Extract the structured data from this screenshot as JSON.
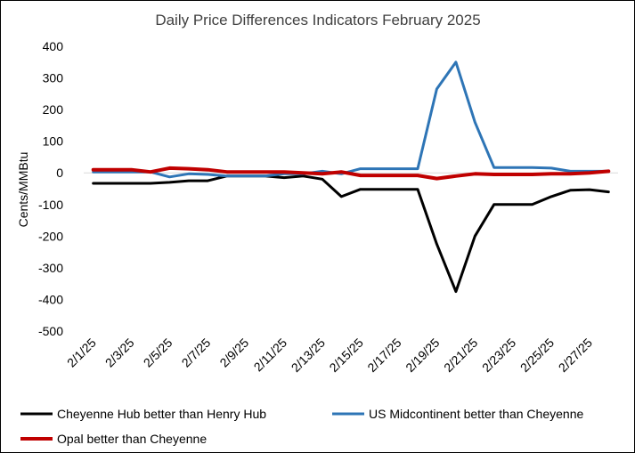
{
  "chart_data": {
    "type": "line",
    "title": "Daily Price Differences Indicators February 2025",
    "xlabel": "",
    "ylabel": "Cents/MMBtu",
    "ylim": [
      -500,
      400
    ],
    "yticks": [
      400,
      300,
      200,
      100,
      0,
      -100,
      -200,
      -300,
      -400,
      -500
    ],
    "ytick_labels": [
      "400",
      "300",
      "200",
      "100",
      "0",
      "-100",
      "-200",
      "-300",
      "-400",
      "-500"
    ],
    "categories": [
      "2/1/25",
      "2/2/25",
      "2/3/25",
      "2/4/25",
      "2/5/25",
      "2/6/25",
      "2/7/25",
      "2/8/25",
      "2/9/25",
      "2/10/25",
      "2/11/25",
      "2/12/25",
      "2/13/25",
      "2/14/25",
      "2/15/25",
      "2/16/25",
      "2/17/25",
      "2/18/25",
      "2/19/25",
      "2/20/25",
      "2/21/25",
      "2/22/25",
      "2/23/25",
      "2/24/25",
      "2/25/25",
      "2/26/25",
      "2/27/25",
      "2/28/25"
    ],
    "xtick_labels": [
      "2/1/25",
      "2/3/25",
      "2/5/25",
      "2/7/25",
      "2/9/25",
      "2/11/25",
      "2/13/25",
      "2/15/25",
      "2/17/25",
      "2/19/25",
      "2/21/25",
      "2/23/25",
      "2/25/25",
      "2/27/25"
    ],
    "grid": false,
    "legend_position": "bottom",
    "series": [
      {
        "name": "Cheyenne Hub better than Henry Hub",
        "color": "#000000",
        "values": [
          -33,
          -33,
          -33,
          -33,
          -30,
          -25,
          -25,
          -10,
          -10,
          -10,
          -15,
          -10,
          -20,
          -75,
          -52,
          -52,
          -52,
          -52,
          -225,
          -375,
          -200,
          -100,
          -100,
          -100,
          -75,
          -55,
          -53,
          -60
        ]
      },
      {
        "name": "US Midcontinent better than Cheyenne",
        "color": "#2E75B6",
        "values": [
          3,
          3,
          3,
          3,
          -13,
          -3,
          -5,
          -10,
          -10,
          -10,
          -3,
          -3,
          5,
          -3,
          13,
          13,
          13,
          13,
          265,
          350,
          160,
          17,
          17,
          17,
          15,
          5,
          5,
          5
        ]
      },
      {
        "name": "Opal better than Cheyenne",
        "color": "#C00000",
        "values": [
          10,
          10,
          10,
          3,
          15,
          13,
          10,
          3,
          3,
          3,
          3,
          0,
          -3,
          3,
          -8,
          -8,
          -8,
          -8,
          -18,
          -10,
          -3,
          -5,
          -5,
          -5,
          -3,
          -3,
          0,
          5
        ]
      }
    ]
  }
}
